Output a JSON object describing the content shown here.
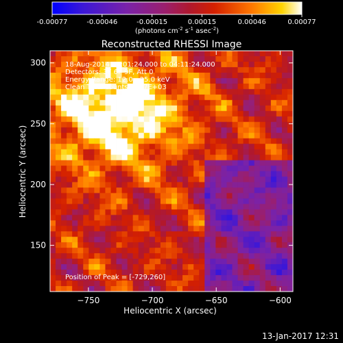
{
  "chart_data": {
    "type": "heatmap",
    "title": "Reconstructed RHESSI Image",
    "xlabel": "Heliocentric X (arcsec)",
    "ylabel": "Heliocentric Y (arcsec)",
    "xlim": [
      -780,
      -590
    ],
    "ylim": [
      112,
      310
    ],
    "xticks": [
      -750,
      -700,
      -650,
      -600
    ],
    "yticks": [
      150,
      200,
      250,
      300
    ],
    "colorbar": {
      "range": [
        -0.00077,
        0.00077
      ],
      "ticks": [
        "-0.00077",
        "-0.00046",
        "-0.00015",
        "0.00015",
        "0.00046",
        "0.00077"
      ],
      "unit_text": "(photons cm",
      "unit_sup1": "-2",
      "unit_mid": " s",
      "unit_sup2": "-1",
      "unit_mid2": " asec",
      "unit_sup3": "-2",
      "unit_end": ")"
    },
    "annotations": [
      "18-Aug-2014 04:01:24.000 to 04:11:24.000",
      "Detectors: 3F 6F 9F, Att 0",
      "Energy Range: 12.0 - 25.0 keV",
      "Clean    Total counts: 7.77E+03"
    ],
    "peak_text": "Position of Peak = [-729,260]",
    "peak": [
      -729,
      260
    ]
  },
  "footer": {
    "timestamp": "13-Jan-2017 12:31"
  }
}
